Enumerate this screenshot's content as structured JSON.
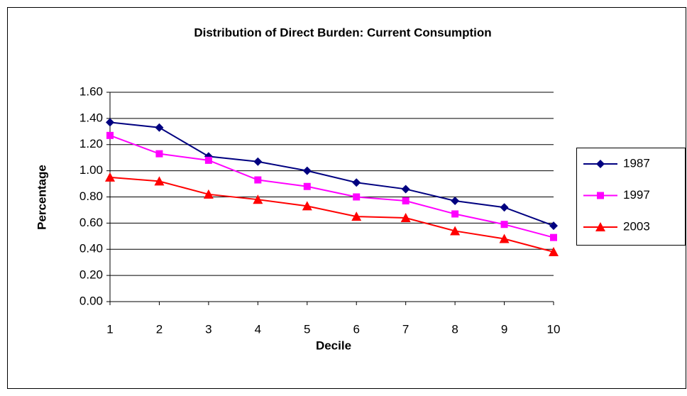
{
  "chart_data": {
    "type": "line",
    "title": "Distribution of Direct Burden: Current Consumption",
    "x_label": "Decile",
    "y_label": "Percentage",
    "categories": [
      "1",
      "2",
      "3",
      "4",
      "5",
      "6",
      "7",
      "8",
      "9",
      "10"
    ],
    "series": [
      {
        "name": "1987",
        "color": "#000080",
        "marker": "diamond",
        "values": [
          1.37,
          1.33,
          1.11,
          1.07,
          1.0,
          0.91,
          0.86,
          0.77,
          0.72,
          0.58
        ]
      },
      {
        "name": "1997",
        "color": "#ff00ff",
        "marker": "square",
        "values": [
          1.27,
          1.13,
          1.08,
          0.93,
          0.88,
          0.8,
          0.77,
          0.67,
          0.59,
          0.49
        ]
      },
      {
        "name": "2003",
        "color": "#ff0000",
        "marker": "triangle",
        "values": [
          0.95,
          0.92,
          0.82,
          0.78,
          0.73,
          0.65,
          0.64,
          0.54,
          0.48,
          0.38
        ]
      }
    ],
    "ylim": [
      0,
      1.6
    ],
    "yticks": [
      {
        "value": 0,
        "label": "0.00"
      },
      {
        "value": 0.2,
        "label": "0.20"
      },
      {
        "value": 0.4,
        "label": "0.40"
      },
      {
        "value": 0.6,
        "label": "0.60"
      },
      {
        "value": 0.8,
        "label": "0.80"
      },
      {
        "value": 1.0,
        "label": "1.00"
      },
      {
        "value": 1.2,
        "label": "1.20"
      },
      {
        "value": 1.4,
        "label": "1.40"
      },
      {
        "value": 1.6,
        "label": "1.60"
      }
    ],
    "grid": true,
    "legend": "right"
  }
}
